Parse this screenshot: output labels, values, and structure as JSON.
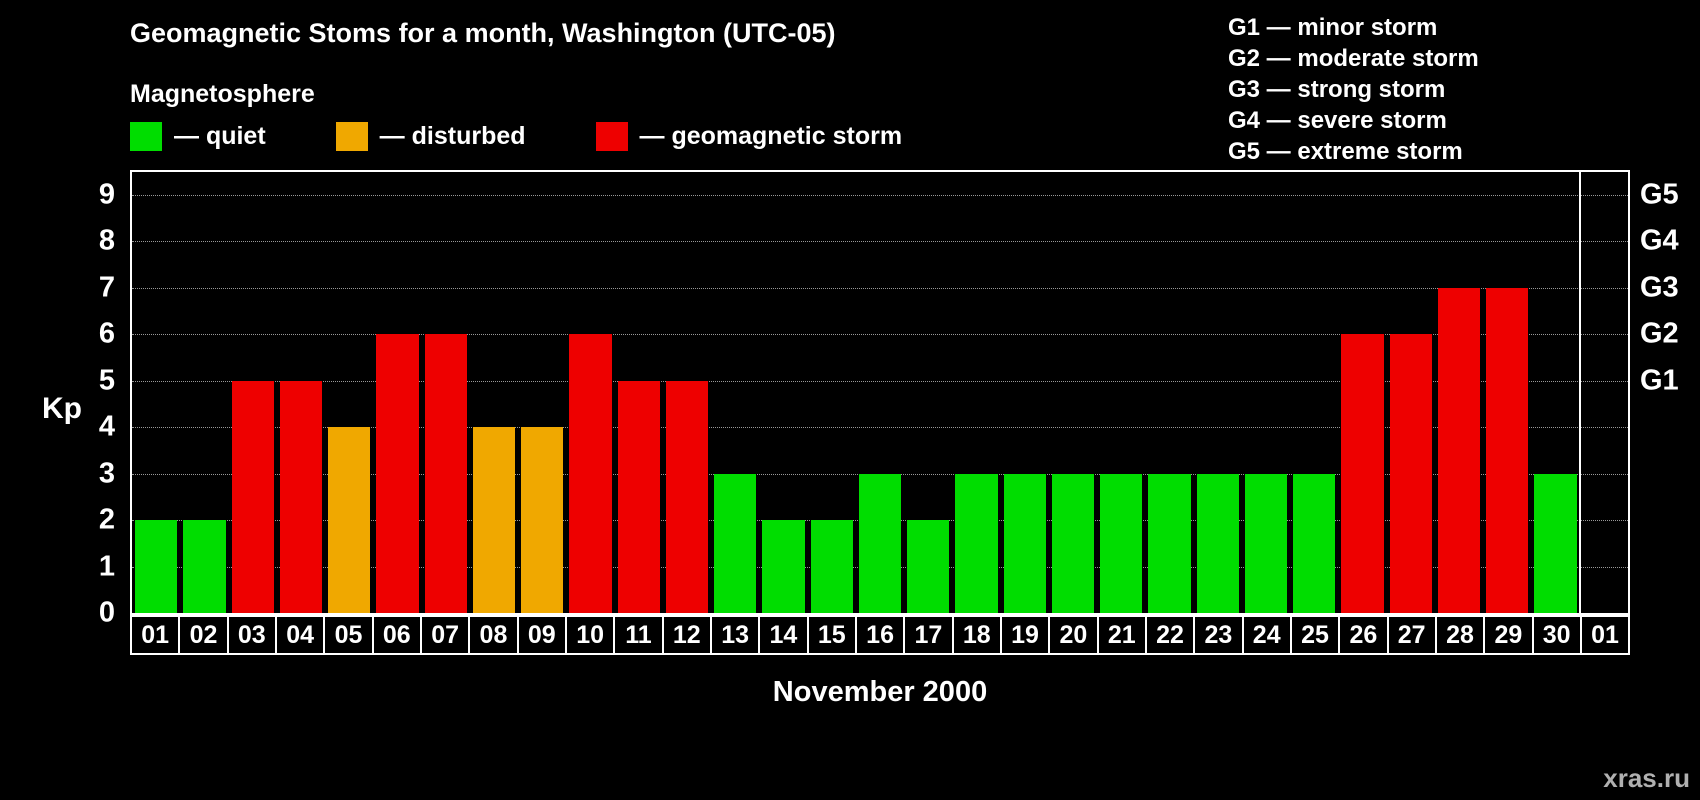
{
  "title": "Geomagnetic Stoms for a month, Washington (UTC-05)",
  "magnetosphere_legend": {
    "heading": "Magnetosphere",
    "items": [
      {
        "name": "quiet",
        "label": "— quiet",
        "color": "#00dd00"
      },
      {
        "name": "disturbed",
        "label": "— disturbed",
        "color": "#f0a800"
      },
      {
        "name": "geomagnetic-storm",
        "label": "— geomagnetic storm",
        "color": "#ee0000"
      }
    ]
  },
  "g_scale_legend": [
    "G1 — minor storm",
    "G2 — moderate storm",
    "G3 — strong storm",
    "G4 — severe storm",
    "G5 — extreme storm"
  ],
  "watermark": "xras.ru",
  "chart_data": {
    "type": "bar",
    "title": "Geomagnetic Stoms for a month, Washington (UTC-05)",
    "xlabel": "November 2000",
    "ylabel": "Kp",
    "categories": [
      "01",
      "02",
      "03",
      "04",
      "05",
      "06",
      "07",
      "08",
      "09",
      "10",
      "11",
      "12",
      "13",
      "14",
      "15",
      "16",
      "17",
      "18",
      "19",
      "20",
      "21",
      "22",
      "23",
      "24",
      "25",
      "26",
      "27",
      "28",
      "29",
      "30",
      "01"
    ],
    "values": [
      2,
      2,
      5,
      5,
      4,
      6,
      6,
      4,
      4,
      6,
      5,
      5,
      3,
      2,
      2,
      3,
      2,
      3,
      3,
      3,
      3,
      3,
      3,
      3,
      3,
      6,
      6,
      7,
      7,
      3,
      null
    ],
    "ylim": [
      0,
      9
    ],
    "yticks": [
      0,
      1,
      2,
      3,
      4,
      5,
      6,
      7,
      8,
      9
    ],
    "grid": "dotted-horizontal",
    "legend_position": "top",
    "color_thresholds": {
      "disturbed_min": 4,
      "storm_min": 5
    },
    "right_axis": [
      {
        "label": "G5",
        "value": 9
      },
      {
        "label": "G4",
        "value": 8
      },
      {
        "label": "G3",
        "value": 7
      },
      {
        "label": "G2",
        "value": 6
      },
      {
        "label": "G1",
        "value": 5
      }
    ],
    "month_separator_index": 30
  }
}
